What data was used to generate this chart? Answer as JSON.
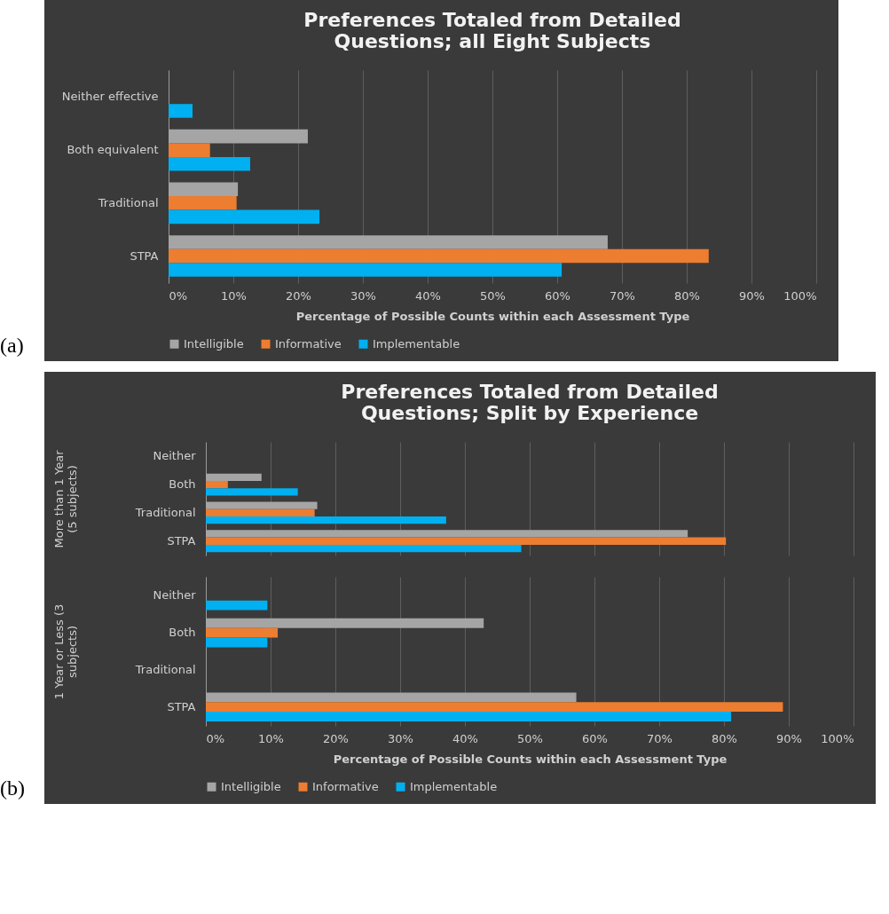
{
  "chart_data": [
    {
      "type": "bar",
      "orientation": "horizontal",
      "title": "Preferences Totaled from Detailed Questions; all Eight Subjects",
      "xlabel": "Percentage of Possible Counts within each Assessment Type",
      "categories": [
        "Neither effective",
        "Both equivalent",
        "Traditional",
        "STPA"
      ],
      "series": [
        {
          "name": "Intelligible",
          "color": "#a5a5a5",
          "values": [
            0,
            21.5,
            10.7,
            67.8
          ]
        },
        {
          "name": "Informative",
          "color": "#ed7d31",
          "values": [
            0,
            6.4,
            10.5,
            83.4
          ]
        },
        {
          "name": "Implementable",
          "color": "#00b0f0",
          "values": [
            3.7,
            12.6,
            23.3,
            60.7
          ]
        }
      ],
      "xlim": [
        0,
        100
      ],
      "xticks": [
        {
          "value": 0,
          "label": "0%"
        },
        {
          "value": 10,
          "label": "10%"
        },
        {
          "value": 20,
          "label": "20%"
        },
        {
          "value": 30,
          "label": "30%"
        },
        {
          "value": 40,
          "label": "40%"
        },
        {
          "value": 50,
          "label": "50%"
        },
        {
          "value": 60,
          "label": "60%"
        },
        {
          "value": 70,
          "label": "70%"
        },
        {
          "value": 80,
          "label": "80%"
        },
        {
          "value": 90,
          "label": "90%"
        },
        {
          "value": 100,
          "label": "100%"
        }
      ],
      "grid": "x",
      "legend": "bottom",
      "annotations": [
        "(a)"
      ]
    },
    {
      "type": "bar",
      "orientation": "horizontal",
      "title": "Preferences Totaled from Detailed Questions; Split by Experience",
      "ylabel": "More than 1 Year (5 subjects)",
      "categories": [
        "Neither",
        "Both",
        "Traditional",
        "STPA"
      ],
      "series": [
        {
          "color": "#a5a5a5",
          "values": [
            0,
            8.6,
            17.2,
            74.4
          ]
        },
        {
          "color": "#ed7d31",
          "values": [
            0,
            3.4,
            16.8,
            80.3
          ]
        },
        {
          "color": "#00b0f0",
          "values": [
            0,
            14.2,
            37.1,
            48.7
          ]
        }
      ],
      "xlim": [
        0,
        100
      ],
      "xticks": [
        {
          "value": 0,
          "label": null
        },
        {
          "value": 10,
          "label": null
        },
        {
          "value": 20,
          "label": null
        },
        {
          "value": 30,
          "label": null
        },
        {
          "value": 40,
          "label": null
        },
        {
          "value": 50,
          "label": null
        },
        {
          "value": 60,
          "label": null
        },
        {
          "value": 70,
          "label": null
        },
        {
          "value": 80,
          "label": null
        },
        {
          "value": 90,
          "label": null
        },
        {
          "value": 100,
          "label": null
        }
      ],
      "grid": "x",
      "tick_labels": "y"
    },
    {
      "type": "bar",
      "orientation": "horizontal",
      "xlabel": "Percentage of Possible Counts within each Assessment Type",
      "ylabel": "1 Year or Less (3 subjects)",
      "categories": [
        "Neither",
        "Both",
        "Traditional",
        "STPA"
      ],
      "series": [
        {
          "name": "Intelligible",
          "color": "#a5a5a5",
          "values": [
            0,
            42.9,
            0,
            57.2
          ]
        },
        {
          "name": "Informative",
          "color": "#ed7d31",
          "values": [
            0,
            11.1,
            0,
            89.1
          ]
        },
        {
          "name": "Implementable",
          "color": "#00b0f0",
          "values": [
            9.5,
            9.5,
            0,
            81.1
          ]
        }
      ],
      "xlim": [
        0,
        100
      ],
      "xticks": [
        {
          "value": 0,
          "label": "0%"
        },
        {
          "value": 10,
          "label": "10%"
        },
        {
          "value": 20,
          "label": "20%"
        },
        {
          "value": 30,
          "label": "30%"
        },
        {
          "value": 40,
          "label": "40%"
        },
        {
          "value": 50,
          "label": "50%"
        },
        {
          "value": 60,
          "label": "60%"
        },
        {
          "value": 70,
          "label": "70%"
        },
        {
          "value": 80,
          "label": "80%"
        },
        {
          "value": 90,
          "label": "90%"
        },
        {
          "value": 100,
          "label": "100%"
        }
      ],
      "grid": "x",
      "legend": "bottom",
      "annotations": [
        "(b)"
      ]
    }
  ]
}
